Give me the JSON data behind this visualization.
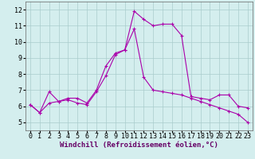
{
  "xlabel": "Windchill (Refroidissement éolien,°C)",
  "ylabel": "",
  "background_color": "#d4eeee",
  "grid_color": "#aacccc",
  "line_color": "#aa00aa",
  "xlim": [
    -0.5,
    23.5
  ],
  "ylim": [
    4.5,
    12.5
  ],
  "yticks": [
    5,
    6,
    7,
    8,
    9,
    10,
    11,
    12
  ],
  "xticks": [
    0,
    1,
    2,
    3,
    4,
    5,
    6,
    7,
    8,
    9,
    10,
    11,
    12,
    13,
    14,
    15,
    16,
    17,
    18,
    19,
    20,
    21,
    22,
    23
  ],
  "line1_x": [
    0,
    1,
    2,
    3,
    4,
    5,
    6,
    7,
    8,
    9,
    10,
    11,
    12,
    13,
    14,
    15,
    16,
    17,
    18,
    19,
    20,
    21,
    22,
    23
  ],
  "line1_y": [
    6.1,
    5.6,
    6.9,
    6.3,
    6.5,
    6.5,
    6.2,
    7.0,
    8.5,
    9.3,
    9.5,
    11.9,
    11.4,
    11.0,
    11.1,
    11.1,
    10.4,
    6.6,
    6.5,
    6.4,
    6.7,
    6.7,
    6.0,
    5.9
  ],
  "line2_x": [
    0,
    1,
    2,
    3,
    4,
    5,
    6,
    7,
    8,
    9,
    10,
    11,
    12,
    13,
    14,
    15,
    16,
    17,
    18,
    19,
    20,
    21,
    22,
    23
  ],
  "line2_y": [
    6.1,
    5.6,
    6.2,
    6.3,
    6.4,
    6.2,
    6.1,
    6.9,
    7.9,
    9.2,
    9.5,
    10.8,
    7.8,
    7.0,
    6.9,
    6.8,
    6.7,
    6.5,
    6.3,
    6.1,
    5.9,
    5.7,
    5.5,
    5.0
  ],
  "xlabel_fontsize": 6.5,
  "tick_fontsize": 6,
  "ylabel_fontsize": 6
}
